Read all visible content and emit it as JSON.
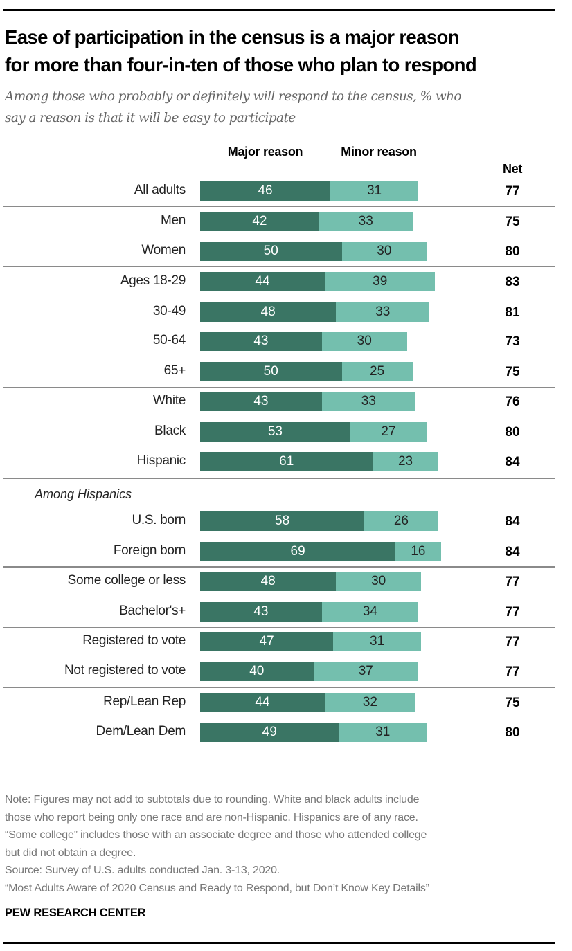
{
  "title_lines": [
    "Ease of participation in the census is a major reason",
    "for more than four-in-ten of those who plan to respond"
  ],
  "subtitle_lines": [
    "Among those who probably or definitely will respond to the census, % who",
    "say a reason is that it will be easy to participate"
  ],
  "chart_data": {
    "type": "bar",
    "stacked": true,
    "orientation": "horizontal",
    "column_headers": {
      "major": "Major reason",
      "minor": "Minor reason",
      "net": "Net"
    },
    "colors": {
      "major": "#3a7564",
      "minor": "#74bfae"
    },
    "subgroup_label": "Among Hispanics",
    "rows": [
      {
        "label": "All adults",
        "major": 46,
        "minor": 31,
        "net": 77
      },
      {
        "label": "Men",
        "major": 42,
        "minor": 33,
        "net": 75
      },
      {
        "label": "Women",
        "major": 50,
        "minor": 30,
        "net": 80
      },
      {
        "label": "Ages 18-29",
        "major": 44,
        "minor": 39,
        "net": 83
      },
      {
        "label": "30-49",
        "major": 48,
        "minor": 33,
        "net": 81
      },
      {
        "label": "50-64",
        "major": 43,
        "minor": 30,
        "net": 73
      },
      {
        "label": "65+",
        "major": 50,
        "minor": 25,
        "net": 75
      },
      {
        "label": "White",
        "major": 43,
        "minor": 33,
        "net": 76
      },
      {
        "label": "Black",
        "major": 53,
        "minor": 27,
        "net": 80
      },
      {
        "label": "Hispanic",
        "major": 61,
        "minor": 23,
        "net": 84
      },
      {
        "label": "U.S. born",
        "major": 58,
        "minor": 26,
        "net": 84
      },
      {
        "label": "Foreign born",
        "major": 69,
        "minor": 16,
        "net": 84
      },
      {
        "label": "Some college or less",
        "major": 48,
        "minor": 30,
        "net": 77
      },
      {
        "label": "Bachelor's+",
        "major": 43,
        "minor": 34,
        "net": 77
      },
      {
        "label": "Registered to vote",
        "major": 47,
        "minor": 31,
        "net": 77
      },
      {
        "label": "Not registered to vote",
        "major": 40,
        "minor": 37,
        "net": 77
      },
      {
        "label": "Rep/Lean Rep",
        "major": 44,
        "minor": 32,
        "net": 75
      },
      {
        "label": "Dem/Lean Dem",
        "major": 49,
        "minor": 31,
        "net": 80
      }
    ]
  },
  "notes": [
    "Note: Figures may not add to subtotals due to rounding. White and black adults include",
    "those who report being only one race and are non-Hispanic. Hispanics are of any race.",
    "“Some college” includes those with an associate degree and those who attended college",
    "but did not obtain a degree.",
    "Source: Survey of U.S. adults conducted Jan. 3-13, 2020.",
    "“Most Adults Aware of 2020 Census and Ready to Respond, but Don’t Know Key Details”"
  ],
  "brand": "PEW RESEARCH CENTER"
}
